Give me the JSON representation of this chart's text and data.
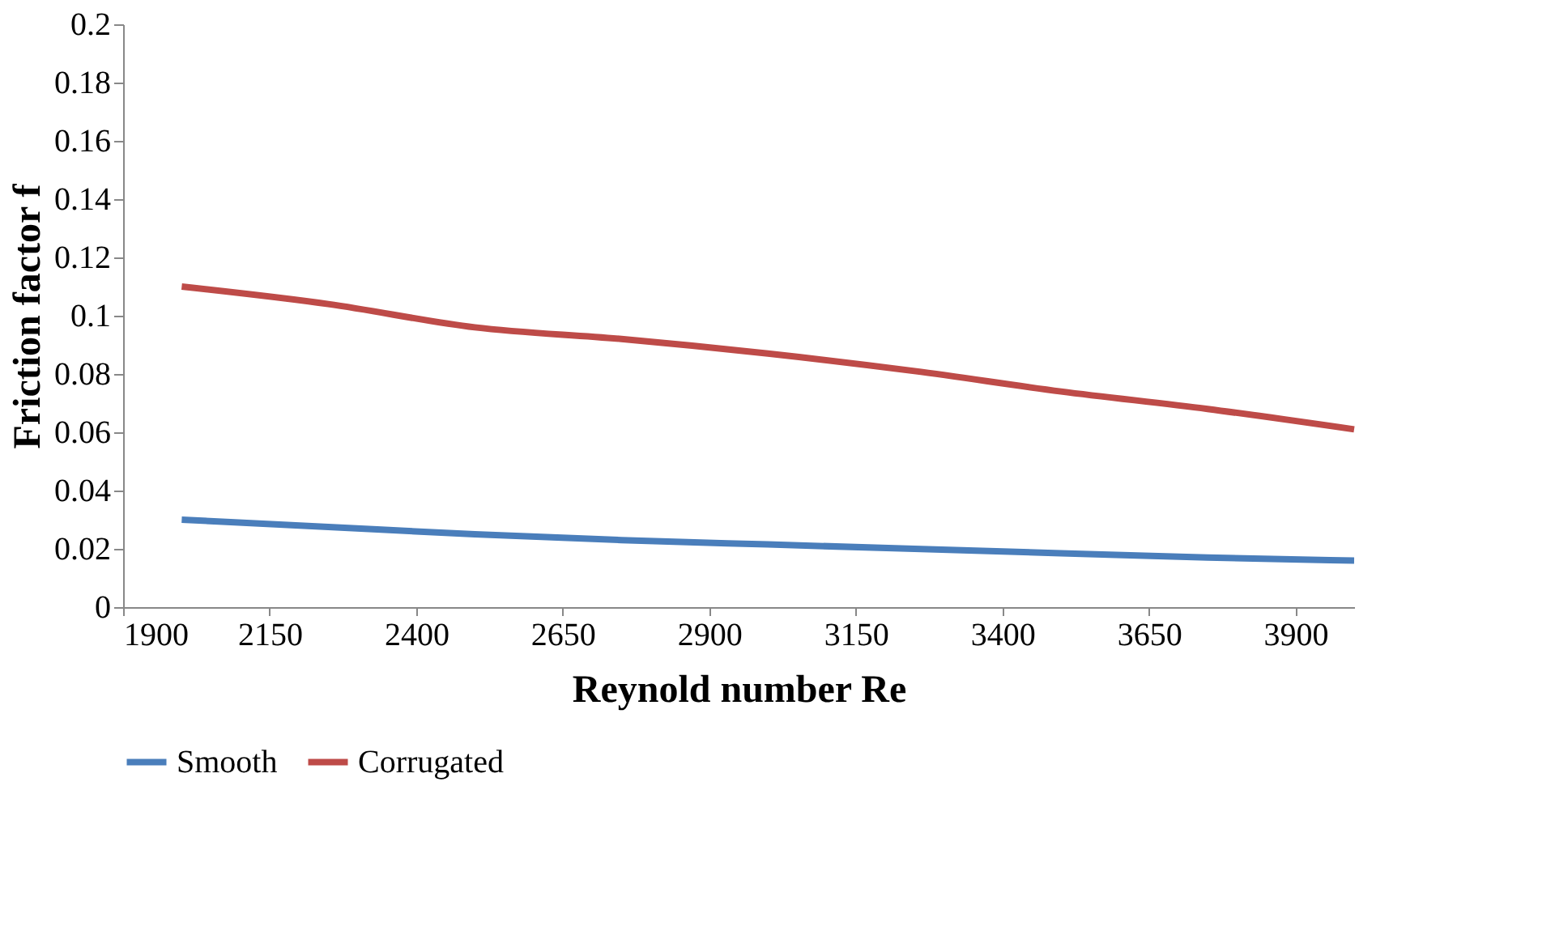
{
  "chart_data": {
    "type": "line",
    "xlabel": "Reynold number Re",
    "ylabel": "Friction factor f",
    "x": [
      2000,
      2250,
      2500,
      2750,
      3000,
      3250,
      3500,
      3750,
      4000
    ],
    "series": [
      {
        "name": "Smooth",
        "color": "#4a7ebb",
        "values": [
          0.03,
          0.0275,
          0.025,
          0.023,
          0.0215,
          0.02,
          0.0185,
          0.017,
          0.016
        ]
      },
      {
        "name": "Corrugated",
        "color": "#be4b48",
        "values": [
          0.11,
          0.104,
          0.096,
          0.092,
          0.087,
          0.081,
          0.074,
          0.068,
          0.061
        ]
      }
    ],
    "xlim": [
      1900,
      4000
    ],
    "xticks": [
      1900,
      2150,
      2400,
      2650,
      2900,
      3150,
      3400,
      3650,
      3900
    ],
    "ylim": [
      0,
      0.2
    ],
    "yticks": [
      0,
      0.02,
      0.04,
      0.06,
      0.08,
      0.1,
      0.12,
      0.14,
      0.16,
      0.18,
      0.2
    ],
    "grid": false,
    "legend": "bottom",
    "marker": "none",
    "line_style": "solid"
  }
}
